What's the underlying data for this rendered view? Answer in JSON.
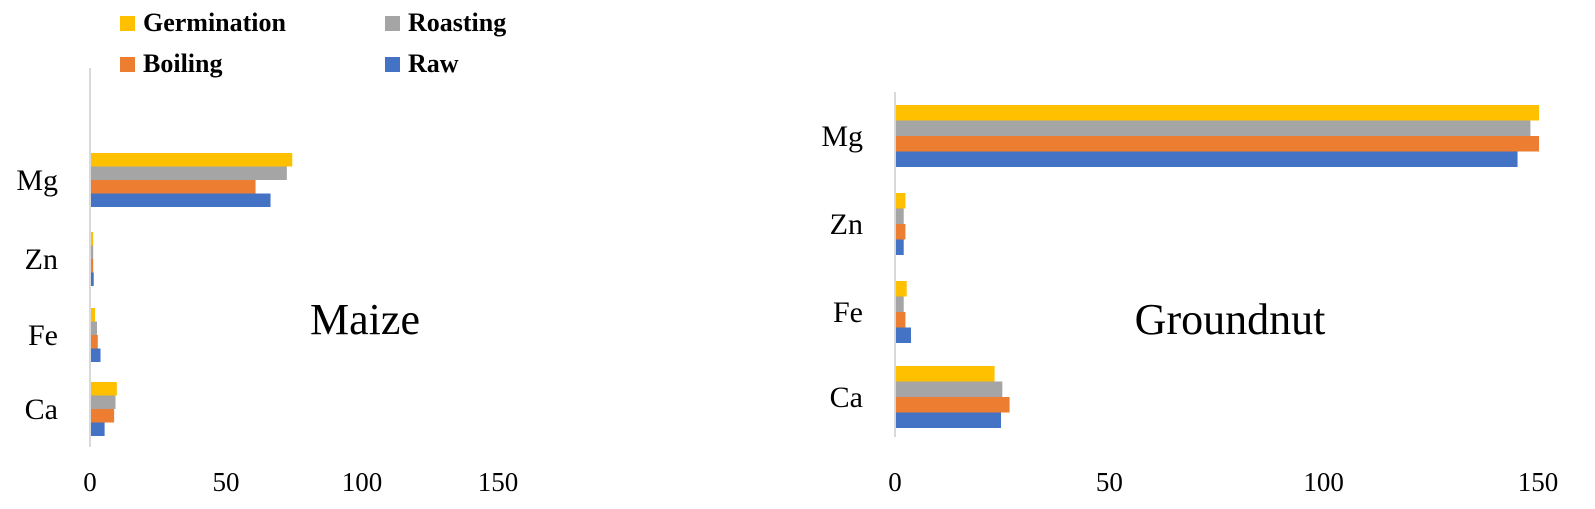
{
  "legend": {
    "position": "top-left",
    "items": [
      {
        "name": "Germination",
        "color": "#FFC000"
      },
      {
        "name": "Roasting",
        "color": "#A5A5A5"
      },
      {
        "name": "Boiling",
        "color": "#ED7D31"
      },
      {
        "name": "Raw",
        "color": "#4472C4"
      }
    ]
  },
  "chart_data": [
    {
      "type": "bar",
      "orientation": "horizontal",
      "title": "Maize",
      "categories": [
        "Ca",
        "Fe",
        "Zn",
        "Mg"
      ],
      "xlim": [
        0,
        150
      ],
      "xticks": [
        "0",
        "50",
        "100",
        "150"
      ],
      "grid": false,
      "series": [
        {
          "name": "Raw",
          "color": "#4472C4",
          "values": [
            5,
            3.5,
            1,
            66
          ]
        },
        {
          "name": "Boiling",
          "color": "#ED7D31",
          "values": [
            8.5,
            2.5,
            0.8,
            60.5
          ]
        },
        {
          "name": "Roasting",
          "color": "#A5A5A5",
          "values": [
            9,
            2.2,
            0.8,
            72
          ]
        },
        {
          "name": "Germination",
          "color": "#FFC000",
          "values": [
            9.5,
            1.5,
            0.8,
            74
          ]
        }
      ]
    },
    {
      "type": "bar",
      "orientation": "horizontal",
      "title": "Groundnut",
      "categories": [
        "Ca",
        "Fe",
        "Zn",
        "Mg"
      ],
      "xlim": [
        0,
        150
      ],
      "xticks": [
        "0",
        "50",
        "100",
        "150"
      ],
      "grid": false,
      "series": [
        {
          "name": "Raw",
          "color": "#4472C4",
          "values": [
            24.5,
            3.5,
            1.8,
            145
          ]
        },
        {
          "name": "Boiling",
          "color": "#ED7D31",
          "values": [
            26.5,
            2.2,
            2.2,
            150
          ]
        },
        {
          "name": "Roasting",
          "color": "#A5A5A5",
          "values": [
            24.8,
            1.8,
            1.8,
            148
          ]
        },
        {
          "name": "Germination",
          "color": "#FFC000",
          "values": [
            23,
            2.5,
            2.2,
            150
          ]
        }
      ]
    }
  ]
}
